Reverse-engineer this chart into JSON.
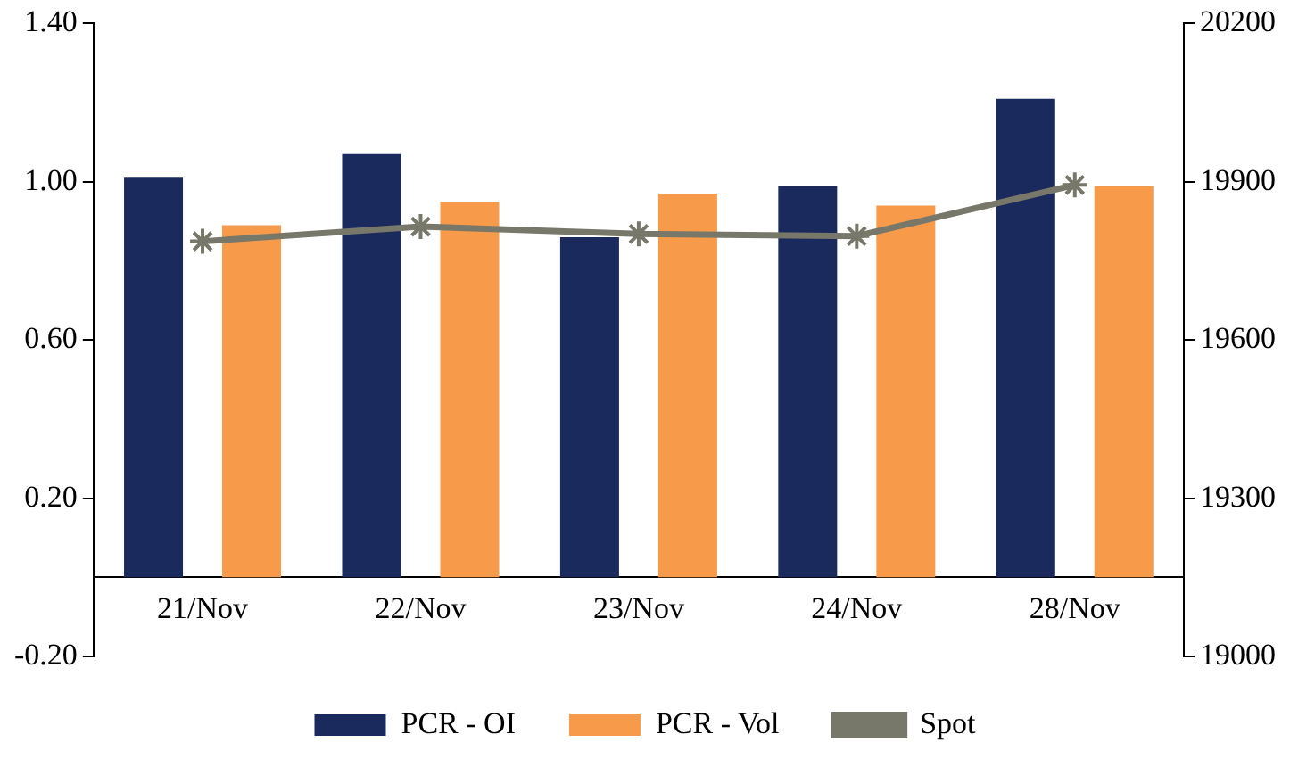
{
  "chart_data": {
    "type": "bar",
    "categories": [
      "21/Nov",
      "22/Nov",
      "23/Nov",
      "24/Nov",
      "28/Nov"
    ],
    "series": [
      {
        "name": "PCR - OI",
        "color": "#1b2a5c",
        "values": [
          1.01,
          1.07,
          0.86,
          0.99,
          1.21
        ]
      },
      {
        "name": "PCR - Vol",
        "color": "#f79a4a",
        "values": [
          0.89,
          0.95,
          0.97,
          0.94,
          0.99
        ]
      },
      {
        "name": "Spot",
        "type": "line",
        "axis": "y2",
        "color": "#77776a",
        "marker": "cross",
        "values": [
          19787,
          19815,
          19801,
          19797,
          19894
        ]
      }
    ],
    "ylim": [
      -0.2,
      1.4
    ],
    "yticks": [
      {
        "value": -0.2,
        "label": "-0.20"
      },
      {
        "value": 0.2,
        "label": "0.20"
      },
      {
        "value": 0.6,
        "label": "0.60"
      },
      {
        "value": 1.0,
        "label": "1.00"
      },
      {
        "value": 1.4,
        "label": "1.40"
      }
    ],
    "y2lim": [
      19000,
      20200
    ],
    "y2ticks": [
      19000,
      19300,
      19600,
      19900,
      20200
    ],
    "grid": false,
    "legend": "bottom"
  }
}
